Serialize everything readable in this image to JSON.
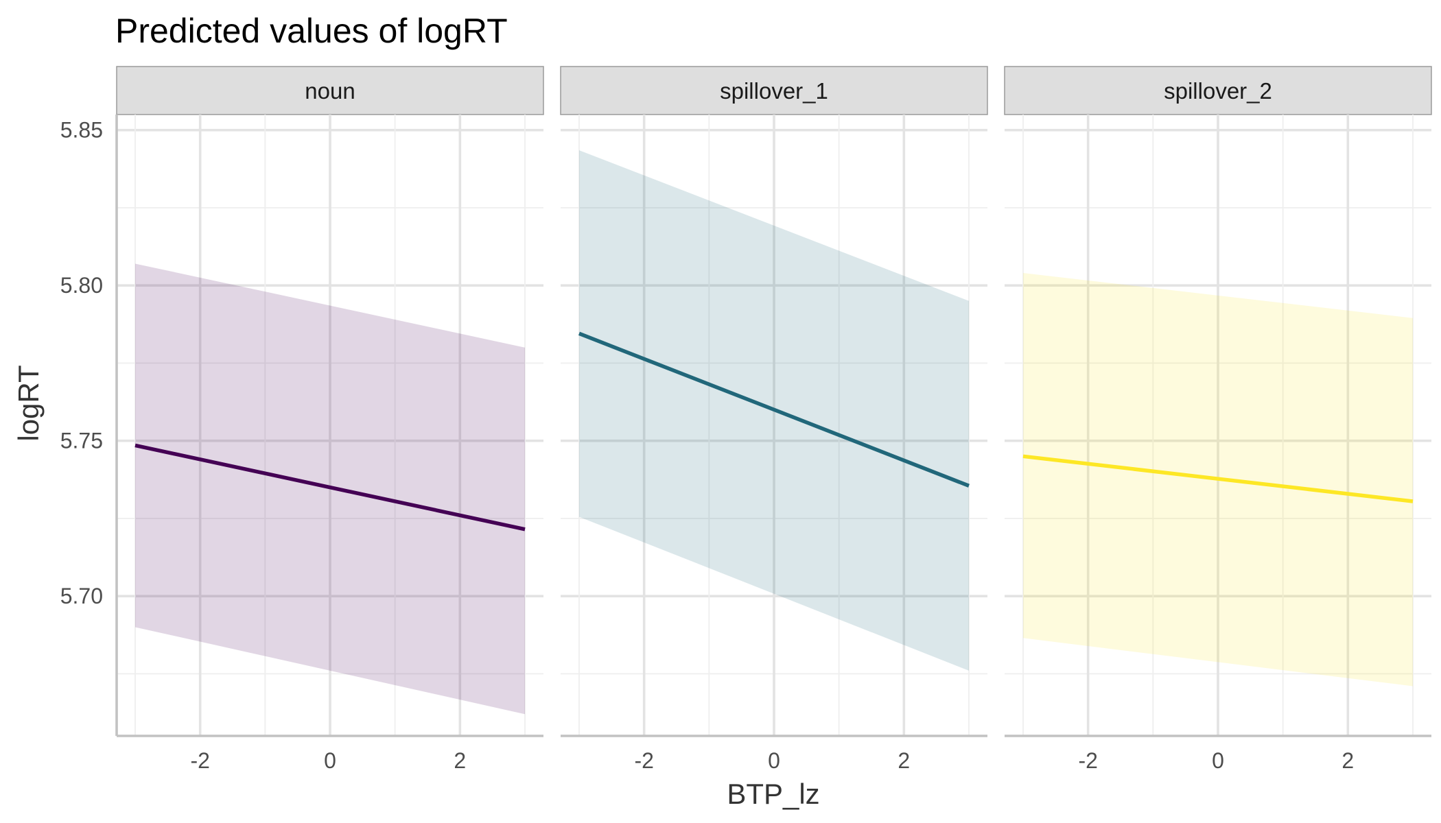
{
  "chart_data": {
    "type": "line",
    "title": "Predicted values of logRT",
    "xlabel": "BTP_lz",
    "ylabel": "logRT",
    "xlim": [
      -3,
      3
    ],
    "ylim": [
      5.655,
      5.855
    ],
    "x_ticks": [
      -2,
      0,
      2
    ],
    "x_tick_labels": [
      "-2",
      "0",
      "2"
    ],
    "y_ticks": [
      5.7,
      5.75,
      5.8,
      5.85
    ],
    "y_tick_labels": [
      "5.70",
      "5.75",
      "5.80",
      "5.85"
    ],
    "grid": true,
    "legend": "none",
    "ribbon": "confidence interval",
    "panels": [
      {
        "name": "noun",
        "color": "#440154",
        "band_color": "#440154",
        "x": [
          -3,
          3
        ],
        "y": [
          5.7485,
          5.7215
        ],
        "lower": [
          5.69,
          5.662
        ],
        "upper": [
          5.807,
          5.78
        ]
      },
      {
        "name": "spillover_1",
        "color": "#21677a",
        "band_color": "#21677a",
        "x": [
          -3,
          3
        ],
        "y": [
          5.7845,
          5.7355
        ],
        "lower": [
          5.7255,
          5.676
        ],
        "upper": [
          5.8435,
          5.795
        ]
      },
      {
        "name": "spillover_2",
        "color": "#fde725",
        "band_color": "#fbe52a",
        "x": [
          -3,
          3
        ],
        "y": [
          5.745,
          5.7305
        ],
        "lower": [
          5.6865,
          5.671
        ],
        "upper": [
          5.804,
          5.7895
        ]
      }
    ]
  }
}
